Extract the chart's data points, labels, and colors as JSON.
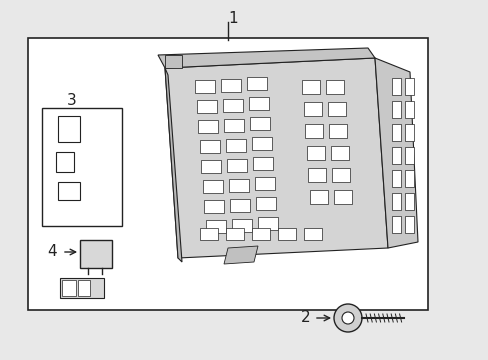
{
  "bg_color": "#e8e8e8",
  "white": "#ffffff",
  "line_color": "#222222",
  "fig_width": 4.89,
  "fig_height": 3.6,
  "dpi": 100,
  "label1": "1",
  "label2": "2",
  "label3": "3",
  "label4": "4"
}
